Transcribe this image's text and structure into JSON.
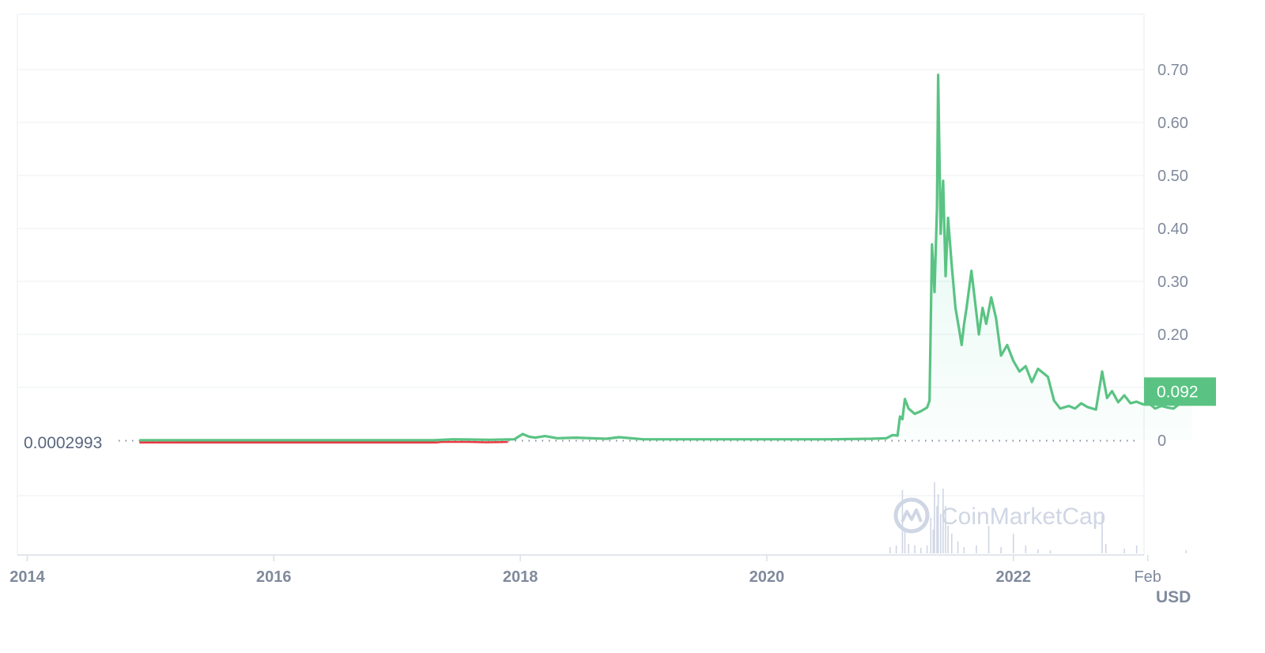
{
  "chart_data": {
    "type": "area",
    "currency_label": "USD",
    "watermark": "CoinMarketCap",
    "baseline_label": "0.0002993",
    "current_value": 0.092,
    "current_label": "0.092",
    "ylim": [
      0,
      0.78
    ],
    "y_ticks": [
      {
        "value": 0,
        "label": "0"
      },
      {
        "value": 0.1,
        "label": ""
      },
      {
        "value": 0.2,
        "label": "0.20"
      },
      {
        "value": 0.3,
        "label": "0.30"
      },
      {
        "value": 0.4,
        "label": "0.40"
      },
      {
        "value": 0.5,
        "label": "0.50"
      },
      {
        "value": 0.6,
        "label": "0.60"
      },
      {
        "value": 0.7,
        "label": "0.70"
      }
    ],
    "xlim": [
      2013.92,
      2023.06
    ],
    "x_ticks": [
      {
        "value": 2014.0,
        "label": "2014",
        "bold": true
      },
      {
        "value": 2016.0,
        "label": "2016",
        "bold": true
      },
      {
        "value": 2018.0,
        "label": "2018",
        "bold": true
      },
      {
        "value": 2020.0,
        "label": "2020",
        "bold": true
      },
      {
        "value": 2022.0,
        "label": "2022",
        "bold": true
      },
      {
        "value": 2023.09,
        "label": "Feb",
        "bold": false
      }
    ],
    "grid": true,
    "series": [
      {
        "color_up": "#16c784",
        "line_color": "#5ac383",
        "below_color": "#ea3943",
        "points": [
          [
            2014.91,
            0.0003
          ],
          [
            2015.5,
            0.0002
          ],
          [
            2016.5,
            0.0002
          ],
          [
            2017.3,
            0.0002
          ],
          [
            2017.45,
            0.002
          ],
          [
            2017.6,
            0.0015
          ],
          [
            2017.75,
            0.001
          ],
          [
            2017.95,
            0.002
          ],
          [
            2018.02,
            0.012
          ],
          [
            2018.07,
            0.007
          ],
          [
            2018.12,
            0.005
          ],
          [
            2018.2,
            0.008
          ],
          [
            2018.3,
            0.004
          ],
          [
            2018.45,
            0.005
          ],
          [
            2018.7,
            0.003
          ],
          [
            2018.8,
            0.006
          ],
          [
            2019.0,
            0.002
          ],
          [
            2019.5,
            0.002
          ],
          [
            2020.0,
            0.002
          ],
          [
            2020.5,
            0.002
          ],
          [
            2020.85,
            0.003
          ],
          [
            2020.97,
            0.004
          ],
          [
            2021.02,
            0.01
          ],
          [
            2021.06,
            0.009
          ],
          [
            2021.08,
            0.045
          ],
          [
            2021.1,
            0.04
          ],
          [
            2021.12,
            0.078
          ],
          [
            2021.15,
            0.06
          ],
          [
            2021.2,
            0.05
          ],
          [
            2021.25,
            0.055
          ],
          [
            2021.3,
            0.062
          ],
          [
            2021.32,
            0.075
          ],
          [
            2021.34,
            0.37
          ],
          [
            2021.36,
            0.28
          ],
          [
            2021.38,
            0.44
          ],
          [
            2021.39,
            0.69
          ],
          [
            2021.41,
            0.39
          ],
          [
            2021.43,
            0.49
          ],
          [
            2021.45,
            0.31
          ],
          [
            2021.47,
            0.42
          ],
          [
            2021.5,
            0.33
          ],
          [
            2021.53,
            0.25
          ],
          [
            2021.56,
            0.21
          ],
          [
            2021.58,
            0.18
          ],
          [
            2021.6,
            0.22
          ],
          [
            2021.62,
            0.25
          ],
          [
            2021.66,
            0.32
          ],
          [
            2021.7,
            0.24
          ],
          [
            2021.72,
            0.2
          ],
          [
            2021.75,
            0.25
          ],
          [
            2021.78,
            0.22
          ],
          [
            2021.82,
            0.27
          ],
          [
            2021.86,
            0.23
          ],
          [
            2021.9,
            0.16
          ],
          [
            2021.95,
            0.18
          ],
          [
            2022.0,
            0.15
          ],
          [
            2022.05,
            0.13
          ],
          [
            2022.1,
            0.14
          ],
          [
            2022.15,
            0.11
          ],
          [
            2022.2,
            0.135
          ],
          [
            2022.28,
            0.12
          ],
          [
            2022.33,
            0.075
          ],
          [
            2022.38,
            0.06
          ],
          [
            2022.45,
            0.065
          ],
          [
            2022.5,
            0.06
          ],
          [
            2022.55,
            0.07
          ],
          [
            2022.6,
            0.063
          ],
          [
            2022.67,
            0.058
          ],
          [
            2022.72,
            0.13
          ],
          [
            2022.76,
            0.08
          ],
          [
            2022.8,
            0.093
          ],
          [
            2022.85,
            0.072
          ],
          [
            2022.9,
            0.085
          ],
          [
            2022.95,
            0.07
          ],
          [
            2023.0,
            0.073
          ],
          [
            2023.05,
            0.068
          ],
          [
            2023.1,
            0.07
          ],
          [
            2023.15,
            0.06
          ],
          [
            2023.2,
            0.065
          ],
          [
            2023.25,
            0.062
          ],
          [
            2023.3,
            0.06
          ],
          [
            2023.38,
            0.075
          ],
          [
            2023.45,
            0.092
          ]
        ],
        "below_segment": [
          [
            2014.91,
            -0.0026
          ],
          [
            2017.32,
            -0.0026
          ],
          [
            2017.36,
            0.0
          ],
          [
            2017.58,
            0.0
          ],
          [
            2017.72,
            -0.0015
          ],
          [
            2017.85,
            -0.0008
          ],
          [
            2017.9,
            0.0
          ]
        ]
      }
    ],
    "volume": [
      [
        2021.0,
        0.08
      ],
      [
        2021.05,
        0.1
      ],
      [
        2021.1,
        0.8
      ],
      [
        2021.12,
        0.3
      ],
      [
        2021.15,
        0.12
      ],
      [
        2021.2,
        0.1
      ],
      [
        2021.25,
        0.07
      ],
      [
        2021.3,
        0.1
      ],
      [
        2021.33,
        0.45
      ],
      [
        2021.35,
        0.3
      ],
      [
        2021.36,
        0.9
      ],
      [
        2021.38,
        0.6
      ],
      [
        2021.39,
        0.75
      ],
      [
        2021.41,
        0.5
      ],
      [
        2021.43,
        0.82
      ],
      [
        2021.45,
        0.6
      ],
      [
        2021.47,
        0.35
      ],
      [
        2021.5,
        0.25
      ],
      [
        2021.55,
        0.15
      ],
      [
        2021.6,
        0.08
      ],
      [
        2021.7,
        0.1
      ],
      [
        2021.8,
        0.35
      ],
      [
        2021.9,
        0.08
      ],
      [
        2022.0,
        0.25
      ],
      [
        2022.1,
        0.1
      ],
      [
        2022.2,
        0.05
      ],
      [
        2022.3,
        0.04
      ],
      [
        2022.72,
        0.48
      ],
      [
        2022.75,
        0.12
      ],
      [
        2022.9,
        0.06
      ],
      [
        2023.0,
        0.1
      ],
      [
        2023.4,
        0.04
      ]
    ]
  }
}
